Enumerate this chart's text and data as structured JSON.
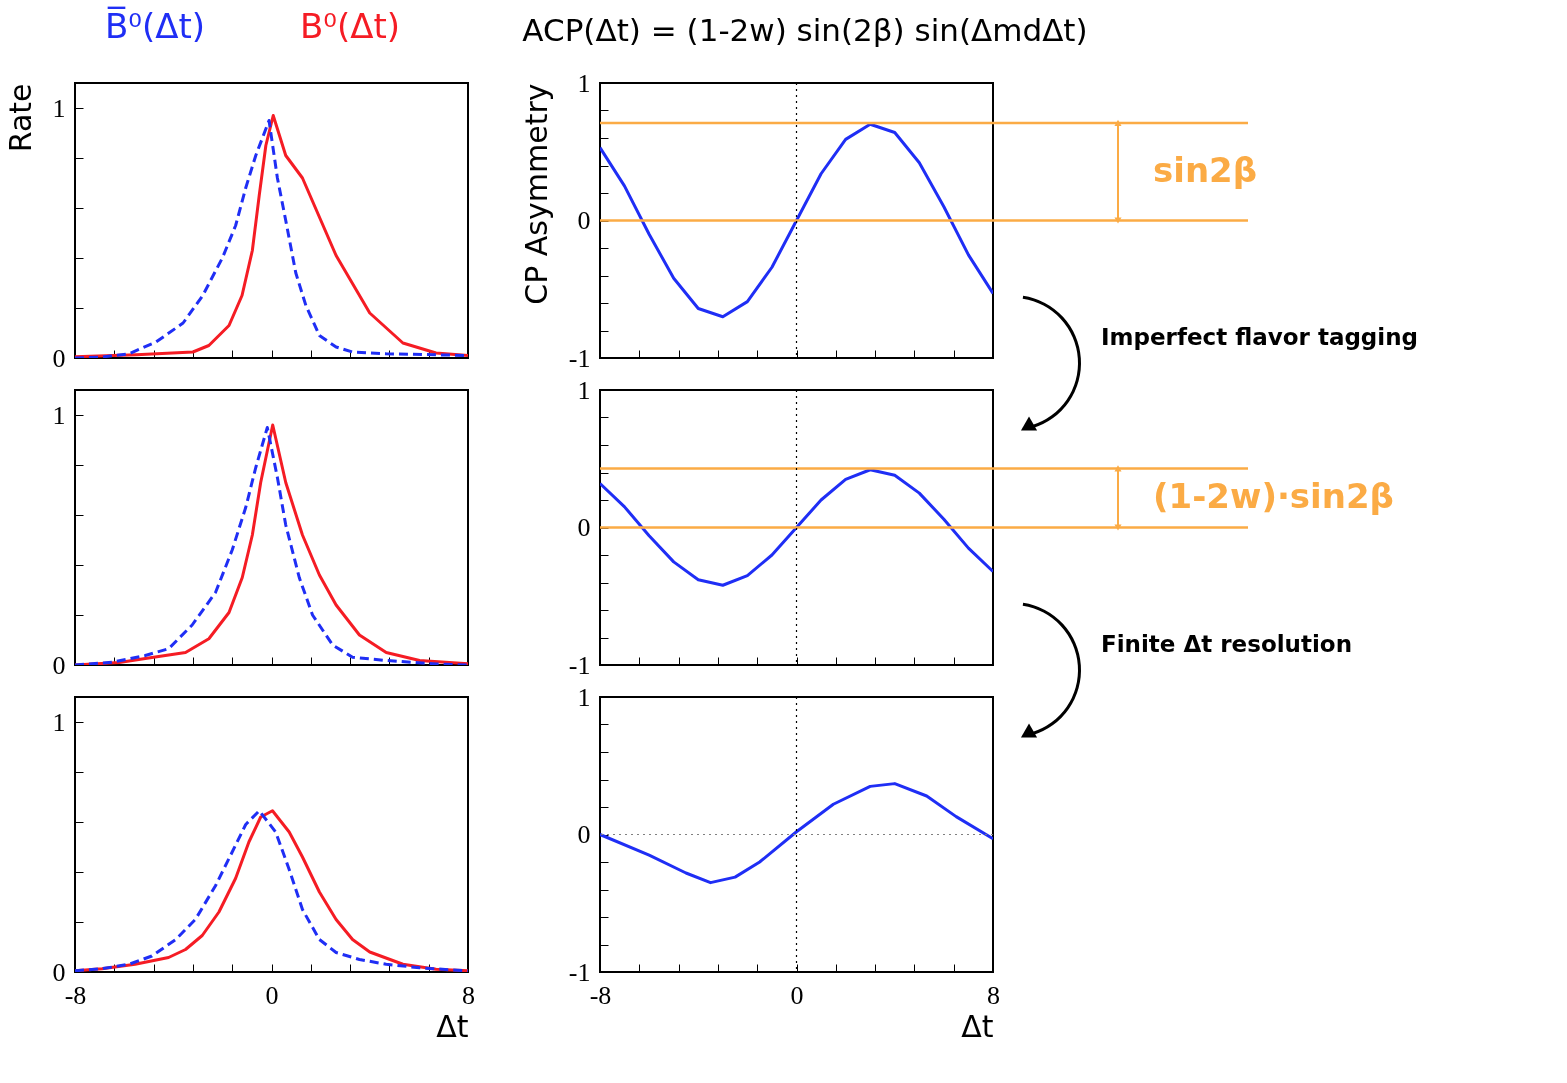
{
  "chart_data": [
    {
      "type": "line",
      "legend": "top",
      "ylabel": "Rate",
      "xlim": [
        -8,
        8
      ],
      "ylim": [
        0,
        1.1
      ],
      "tick_labels": "y",
      "xticks": [
        -8,
        {
          "value": -6.4,
          "label": null
        },
        {
          "value": -4.8,
          "label": null
        },
        {
          "value": -3.2,
          "label": null
        },
        {
          "value": -1.6,
          "label": null
        },
        0,
        {
          "value": 1.6,
          "label": null
        },
        {
          "value": 3.2,
          "label": null
        },
        {
          "value": 4.8,
          "label": null
        },
        {
          "value": 6.4,
          "label": null
        },
        8
      ],
      "yticks": [
        0,
        {
          "value": 0.2,
          "label": null
        },
        {
          "value": 0.4,
          "label": null
        },
        {
          "value": 0.6,
          "label": null
        },
        {
          "value": 0.8,
          "label": null
        },
        1
      ],
      "series": [
        {
          "name": "B̅⁰(Δt)",
          "color": "#1f2ef5",
          "line_style": "dashed",
          "x": [
            -8,
            -6.9,
            -5.8,
            -4.7,
            -3.6,
            -2.8,
            -2.0,
            -1.46,
            -1.05,
            -0.64,
            -0.1,
            0.24,
            0.58,
            0.99,
            1.4,
            1.95,
            2.63,
            3.3,
            4.67,
            8
          ],
          "values": [
            0,
            0.004,
            0.017,
            0.064,
            0.14,
            0.25,
            0.4,
            0.53,
            0.68,
            0.81,
            0.95,
            0.72,
            0.55,
            0.34,
            0.21,
            0.09,
            0.044,
            0.024,
            0.017,
            0.01
          ]
        },
        {
          "name": "B⁰(Δt)",
          "color": "#f51c24",
          "line_style": "solid",
          "x": [
            -8,
            -5.5,
            -3.2,
            -2.55,
            -1.73,
            -1.2,
            -0.78,
            -0.5,
            -0.23,
            0.07,
            0.58,
            1.26,
            2.63,
            4.0,
            5.35,
            6.7,
            8
          ],
          "values": [
            0.005,
            0.013,
            0.024,
            0.05,
            0.13,
            0.25,
            0.43,
            0.65,
            0.85,
            0.97,
            0.81,
            0.72,
            0.41,
            0.18,
            0.06,
            0.02,
            0.01
          ]
        }
      ]
    },
    {
      "type": "line",
      "title": "ACP(Δt) = (1-2w) sin(2β) sin(ΔmdΔt)",
      "ylabel": "CP Asymmetry",
      "xlim": [
        -8,
        8
      ],
      "ylim": [
        -1,
        1
      ],
      "tick_labels": "y",
      "xticks": [
        -8,
        {
          "value": -6.4,
          "label": null
        },
        {
          "value": -4.8,
          "label": null
        },
        {
          "value": -3.2,
          "label": null
        },
        {
          "value": -1.6,
          "label": null
        },
        0,
        {
          "value": 1.6,
          "label": null
        },
        {
          "value": 3.2,
          "label": null
        },
        {
          "value": 4.8,
          "label": null
        },
        {
          "value": 6.4,
          "label": null
        },
        8
      ],
      "yticks": [
        -1,
        {
          "value": -0.8,
          "label": null
        },
        {
          "value": -0.6,
          "label": null
        },
        {
          "value": -0.4,
          "label": null
        },
        {
          "value": -0.2,
          "label": null
        },
        0,
        {
          "value": 0.2,
          "label": null
        },
        {
          "value": 0.4,
          "label": null
        },
        {
          "value": 0.6,
          "label": null
        },
        {
          "value": 0.8,
          "label": null
        },
        1
      ],
      "x": [
        -8,
        -7,
        -6,
        -5,
        -4,
        -3,
        -2,
        -1,
        0,
        1,
        2,
        3,
        4,
        5,
        6,
        7,
        8
      ],
      "series": [
        {
          "color": "#1f2ef5",
          "values": [
            0.53,
            0.25,
            -0.1,
            -0.42,
            -0.64,
            -0.7,
            -0.59,
            -0.34,
            0,
            0.34,
            0.59,
            0.7,
            0.64,
            0.42,
            0.1,
            -0.25,
            -0.53
          ]
        }
      ],
      "ref_lines": [
        {
          "axis": "y",
          "value": 0.71,
          "color": "#fbab45"
        },
        {
          "axis": "y",
          "value": 0,
          "color": "#fbab45"
        },
        {
          "axis": "x",
          "value": 0,
          "color": "#000000",
          "line_style": "dotted"
        }
      ],
      "annotations": [
        "sin2β",
        "Imperfect flavor tagging"
      ]
    },
    {
      "type": "line",
      "xlim": [
        -8,
        8
      ],
      "ylim": [
        0,
        1.1
      ],
      "tick_labels": "y",
      "xticks": [
        -8,
        {
          "value": -6.4,
          "label": null
        },
        {
          "value": -4.8,
          "label": null
        },
        {
          "value": -3.2,
          "label": null
        },
        {
          "value": -1.6,
          "label": null
        },
        0,
        {
          "value": 1.6,
          "label": null
        },
        {
          "value": 3.2,
          "label": null
        },
        {
          "value": 4.8,
          "label": null
        },
        {
          "value": 6.4,
          "label": null
        },
        8
      ],
      "yticks": [
        0,
        {
          "value": 0.2,
          "label": null
        },
        {
          "value": 0.4,
          "label": null
        },
        {
          "value": 0.6,
          "label": null
        },
        {
          "value": 0.8,
          "label": null
        },
        1
      ],
      "series": [
        {
          "color": "#1f2ef5",
          "line_style": "dashed",
          "x": [
            -8,
            -6.5,
            -5.14,
            -4.19,
            -3.23,
            -2.28,
            -1.6,
            -1.05,
            -0.64,
            -0.17,
            0.24,
            0.58,
            1.13,
            1.67,
            2.49,
            3.3,
            4.67,
            6.7,
            8
          ],
          "values": [
            0,
            0.011,
            0.038,
            0.065,
            0.16,
            0.29,
            0.46,
            0.63,
            0.79,
            0.95,
            0.75,
            0.56,
            0.35,
            0.2,
            0.08,
            0.031,
            0.018,
            0.004,
            0
          ]
        },
        {
          "color": "#f51c24",
          "line_style": "solid",
          "x": [
            -8,
            -6.2,
            -4.87,
            -3.5,
            -2.55,
            -1.73,
            -1.19,
            -0.78,
            -0.44,
            0.05,
            0.58,
            1.26,
            1.95,
            2.63,
            3.58,
            4.67,
            6.03,
            8
          ],
          "values": [
            0,
            0.01,
            0.03,
            0.05,
            0.105,
            0.21,
            0.35,
            0.52,
            0.73,
            0.96,
            0.73,
            0.52,
            0.36,
            0.24,
            0.12,
            0.05,
            0.018,
            0.005
          ]
        }
      ]
    },
    {
      "type": "line",
      "xlim": [
        -8,
        8
      ],
      "ylim": [
        -1,
        1
      ],
      "tick_labels": "y",
      "xticks": [
        -8,
        {
          "value": -6.4,
          "label": null
        },
        {
          "value": -4.8,
          "label": null
        },
        {
          "value": -3.2,
          "label": null
        },
        {
          "value": -1.6,
          "label": null
        },
        0,
        {
          "value": 1.6,
          "label": null
        },
        {
          "value": 3.2,
          "label": null
        },
        {
          "value": 4.8,
          "label": null
        },
        {
          "value": 6.4,
          "label": null
        },
        8
      ],
      "yticks": [
        -1,
        {
          "value": -0.8,
          "label": null
        },
        {
          "value": -0.6,
          "label": null
        },
        {
          "value": -0.4,
          "label": null
        },
        {
          "value": -0.2,
          "label": null
        },
        0,
        {
          "value": 0.2,
          "label": null
        },
        {
          "value": 0.4,
          "label": null
        },
        {
          "value": 0.6,
          "label": null
        },
        {
          "value": 0.8,
          "label": null
        },
        1
      ],
      "x": [
        -8,
        -7,
        -6,
        -5,
        -4,
        -3,
        -2,
        -1,
        0,
        1,
        2,
        3,
        4,
        5,
        6,
        7,
        8
      ],
      "series": [
        {
          "color": "#1f2ef5",
          "values": [
            0.32,
            0.15,
            -0.06,
            -0.25,
            -0.38,
            -0.42,
            -0.35,
            -0.2,
            0,
            0.2,
            0.35,
            0.42,
            0.38,
            0.25,
            0.06,
            -0.15,
            -0.32
          ]
        }
      ],
      "ref_lines": [
        {
          "axis": "y",
          "value": 0.43,
          "color": "#fbab45"
        },
        {
          "axis": "y",
          "value": 0,
          "color": "#fbab45"
        },
        {
          "axis": "x",
          "value": 0,
          "color": "#000000",
          "line_style": "dotted"
        }
      ],
      "annotations": [
        "(1-2w)·sin2β",
        "Finite Δt resolution"
      ]
    },
    {
      "type": "line",
      "xlabel": "Δt",
      "xlim": [
        -8,
        8
      ],
      "ylim": [
        0,
        1.1
      ],
      "xticks": [
        -8,
        {
          "value": -6.4,
          "label": null
        },
        {
          "value": -4.8,
          "label": null
        },
        {
          "value": -3.2,
          "label": null
        },
        {
          "value": -1.6,
          "label": null
        },
        0,
        {
          "value": 1.6,
          "label": null
        },
        {
          "value": 3.2,
          "label": null
        },
        {
          "value": 4.8,
          "label": null
        },
        {
          "value": 6.4,
          "label": null
        },
        8
      ],
      "yticks": [
        0,
        {
          "value": 0.2,
          "label": null
        },
        {
          "value": 0.4,
          "label": null
        },
        {
          "value": 0.6,
          "label": null
        },
        {
          "value": 0.8,
          "label": null
        },
        1
      ],
      "series": [
        {
          "color": "#1f2ef5",
          "line_style": "dashed",
          "x": [
            -8,
            -6.9,
            -5.8,
            -4.87,
            -3.9,
            -3.1,
            -2.28,
            -1.6,
            -1.05,
            -0.5,
            0.17,
            0.72,
            1.26,
            1.95,
            2.63,
            3.58,
            4.67,
            6.03,
            8
          ],
          "values": [
            0.005,
            0.013,
            0.031,
            0.064,
            0.13,
            0.21,
            0.345,
            0.48,
            0.59,
            0.645,
            0.56,
            0.41,
            0.25,
            0.13,
            0.078,
            0.05,
            0.031,
            0.017,
            0.004
          ]
        },
        {
          "color": "#f51c24",
          "line_style": "solid",
          "x": [
            -8,
            -6.9,
            -5.55,
            -4.19,
            -3.5,
            -2.82,
            -2.14,
            -1.46,
            -0.92,
            -0.44,
            0.04,
            0.72,
            1.26,
            1.95,
            2.63,
            3.3,
            4.0,
            5.35,
            6.7,
            8
          ],
          "values": [
            0.005,
            0.013,
            0.031,
            0.058,
            0.09,
            0.146,
            0.24,
            0.375,
            0.52,
            0.62,
            0.645,
            0.56,
            0.46,
            0.32,
            0.21,
            0.13,
            0.08,
            0.031,
            0.011,
            0.005
          ]
        }
      ]
    },
    {
      "type": "line",
      "xlabel": "Δt",
      "xlim": [
        -8,
        8
      ],
      "ylim": [
        -1,
        1
      ],
      "xticks": [
        -8,
        {
          "value": -6.4,
          "label": null
        },
        {
          "value": -4.8,
          "label": null
        },
        {
          "value": -3.2,
          "label": null
        },
        {
          "value": -1.6,
          "label": null
        },
        0,
        {
          "value": 1.6,
          "label": null
        },
        {
          "value": 3.2,
          "label": null
        },
        {
          "value": 4.8,
          "label": null
        },
        {
          "value": 6.4,
          "label": null
        },
        8
      ],
      "yticks": [
        -1,
        {
          "value": -0.8,
          "label": null
        },
        {
          "value": -0.6,
          "label": null
        },
        {
          "value": -0.4,
          "label": null
        },
        {
          "value": -0.2,
          "label": null
        },
        0,
        {
          "value": 0.2,
          "label": null
        },
        {
          "value": 0.4,
          "label": null
        },
        {
          "value": 0.6,
          "label": null
        },
        {
          "value": 0.8,
          "label": null
        },
        1
      ],
      "series": [
        {
          "color": "#1f2ef5",
          "x": [
            -8,
            -6,
            -4.5,
            -3.5,
            -2.5,
            -1.5,
            0,
            1.5,
            3,
            4,
            5.3,
            6.5,
            8
          ],
          "values": [
            0,
            -0.15,
            -0.28,
            -0.35,
            -0.31,
            -0.2,
            0.02,
            0.22,
            0.35,
            0.37,
            0.28,
            0.13,
            -0.03
          ]
        }
      ],
      "ref_lines": [
        {
          "axis": "y",
          "value": 0,
          "color": "#808080",
          "line_style": "dotted"
        },
        {
          "axis": "x",
          "value": 0,
          "color": "#000000",
          "line_style": "dotted"
        }
      ]
    }
  ]
}
